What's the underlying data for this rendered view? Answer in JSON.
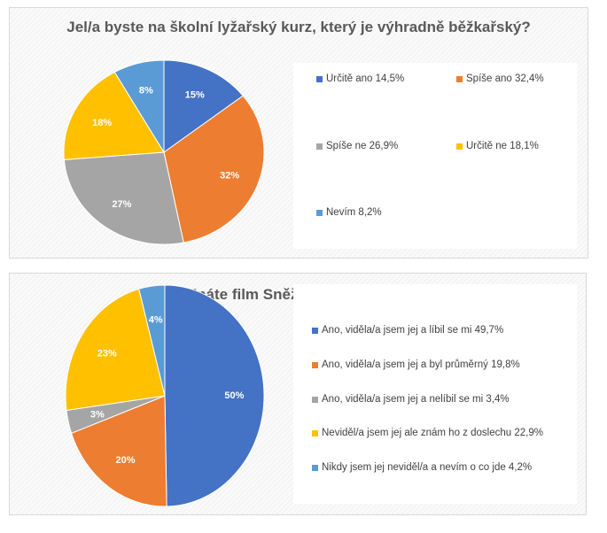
{
  "chart_data": [
    {
      "type": "pie",
      "title": "Jel/a byste na školní lyžařský kurz, který je výhradně běžkařský?",
      "slices": [
        {
          "label": "Určitě ano 14,5%",
          "value": 14.5,
          "data_label": "15%",
          "color": "#4472c4"
        },
        {
          "label": "Spíše ano 32,4%",
          "value": 32.4,
          "data_label": "32%",
          "color": "#ed7d31"
        },
        {
          "label": "Spíše ne 26,9%",
          "value": 26.9,
          "data_label": "27%",
          "color": "#a5a5a5"
        },
        {
          "label": "Určitě ne 18,1%",
          "value": 18.1,
          "data_label": "18%",
          "color": "#ffc000"
        },
        {
          "label": "Nevím 8,2%",
          "value": 8.2,
          "data_label": "8%",
          "color": "#5b9bd5"
        }
      ],
      "legend": "right"
    },
    {
      "type": "pie",
      "title": "Znáte film Sněženky a machři?",
      "slices": [
        {
          "label": "Ano, viděla/a jsem jej a líbil se mi 49,7%",
          "value": 49.7,
          "data_label": "50%",
          "color": "#4472c4"
        },
        {
          "label": "Ano, viděla/a jsem jej a byl průměrný 19,8%",
          "value": 19.8,
          "data_label": "20%",
          "color": "#ed7d31"
        },
        {
          "label": "Ano, viděla/a jsem jej a nelíbil se mi 3,4%",
          "value": 3.4,
          "data_label": "3%",
          "color": "#a5a5a5"
        },
        {
          "label": "Neviděl/a jsem jej ale znám ho z doslechu 22,9%",
          "value": 22.9,
          "data_label": "23%",
          "color": "#ffc000"
        },
        {
          "label": "Nikdy jsem jej neviděl/a a nevím o co jde 4,2%",
          "value": 4.2,
          "data_label": "4%",
          "color": "#5b9bd5"
        }
      ],
      "legend": "right"
    }
  ]
}
